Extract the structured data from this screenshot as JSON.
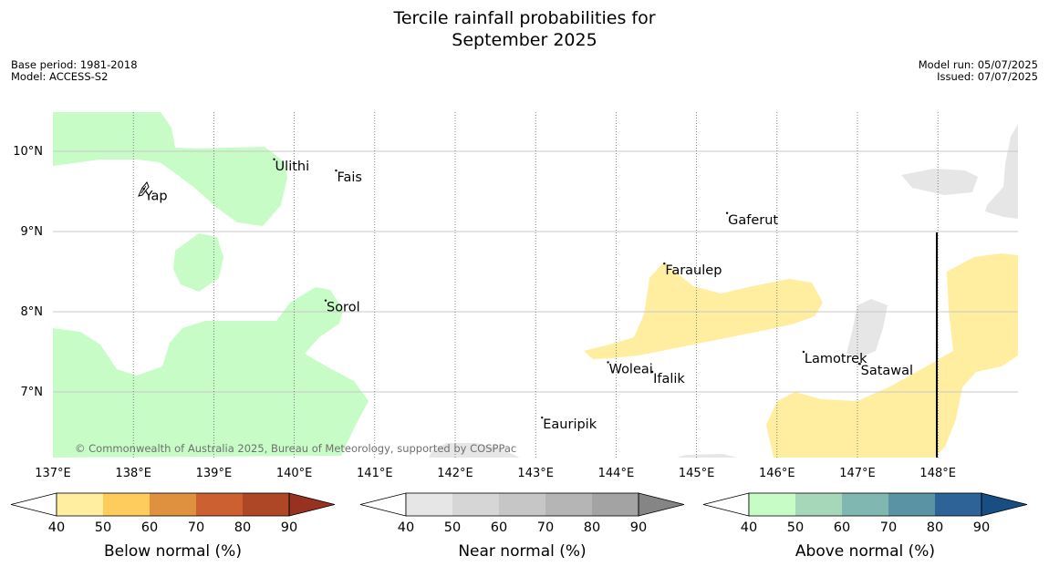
{
  "title_line1": "Tercile rainfall probabilities for",
  "title_line2": "September 2025",
  "base_period": "Base period: 1981-2018",
  "model": "Model: ACCESS-S2",
  "model_run": "Model run: 05/07/2025",
  "issued": "Issued: 07/07/2025",
  "copyright": "© Commonwealth of Australia 2025, Bureau of Meteorology, supported by COSPPac",
  "map": {
    "lon_range": [
      137,
      149
    ],
    "lat_range": [
      6.2,
      10.5
    ],
    "lon_ticks": [
      "137°E",
      "138°E",
      "139°E",
      "140°E",
      "141°E",
      "142°E",
      "143°E",
      "144°E",
      "145°E",
      "146°E",
      "147°E",
      "148°E"
    ],
    "lat_ticks": [
      "7°N",
      "8°N",
      "9°N",
      "10°N"
    ],
    "places": [
      {
        "name": "Ulithi",
        "lon": 139.75,
        "lat": 9.9
      },
      {
        "name": "Fais",
        "lon": 140.52,
        "lat": 9.76
      },
      {
        "name": "Yap",
        "lon": 138.13,
        "lat": 9.53
      },
      {
        "name": "Gaferut",
        "lon": 145.38,
        "lat": 9.23
      },
      {
        "name": "Faraulep",
        "lon": 144.6,
        "lat": 8.6
      },
      {
        "name": "Sorol",
        "lon": 140.39,
        "lat": 8.14
      },
      {
        "name": "Lamotrek",
        "lon": 146.33,
        "lat": 7.5
      },
      {
        "name": "Woleai",
        "lon": 143.9,
        "lat": 7.37
      },
      {
        "name": "Ifalik",
        "lon": 144.45,
        "lat": 7.25
      },
      {
        "name": "Satawal",
        "lon": 147.03,
        "lat": 7.35
      },
      {
        "name": "Eauripik",
        "lon": 143.08,
        "lat": 6.68
      }
    ],
    "colors": {
      "below_normal_40_50": "#FFEDA0",
      "near_normal_40_50": "#E6E6E6",
      "above_normal_40_50": "#C7FCC7"
    }
  },
  "colorbars": [
    {
      "label": "Below normal (%)",
      "ticks": [
        "40",
        "50",
        "60",
        "70",
        "80",
        "90"
      ],
      "colors": [
        "#FFEDA0",
        "#FECC5C",
        "#E0913F",
        "#CC6030",
        "#AE4725",
        "#993120"
      ]
    },
    {
      "label": "Near normal (%)",
      "ticks": [
        "40",
        "50",
        "60",
        "70",
        "80",
        "90"
      ],
      "colors": [
        "#E6E6E6",
        "#D6D6D6",
        "#C6C6C6",
        "#B5B5B5",
        "#A3A3A3",
        "#858585"
      ]
    },
    {
      "label": "Above normal (%)",
      "ticks": [
        "40",
        "50",
        "60",
        "70",
        "80",
        "90"
      ],
      "colors": [
        "#C7FCC7",
        "#A6D7B9",
        "#80B7B1",
        "#5A93A3",
        "#2D6396",
        "#184E82"
      ]
    }
  ]
}
